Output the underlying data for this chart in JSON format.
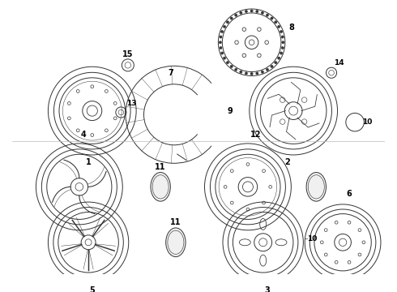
{
  "bg_color": "#ffffff",
  "line_color": "#333333",
  "label_color": "#000000",
  "figsize": [
    4.9,
    3.6
  ],
  "dpi": 100
}
